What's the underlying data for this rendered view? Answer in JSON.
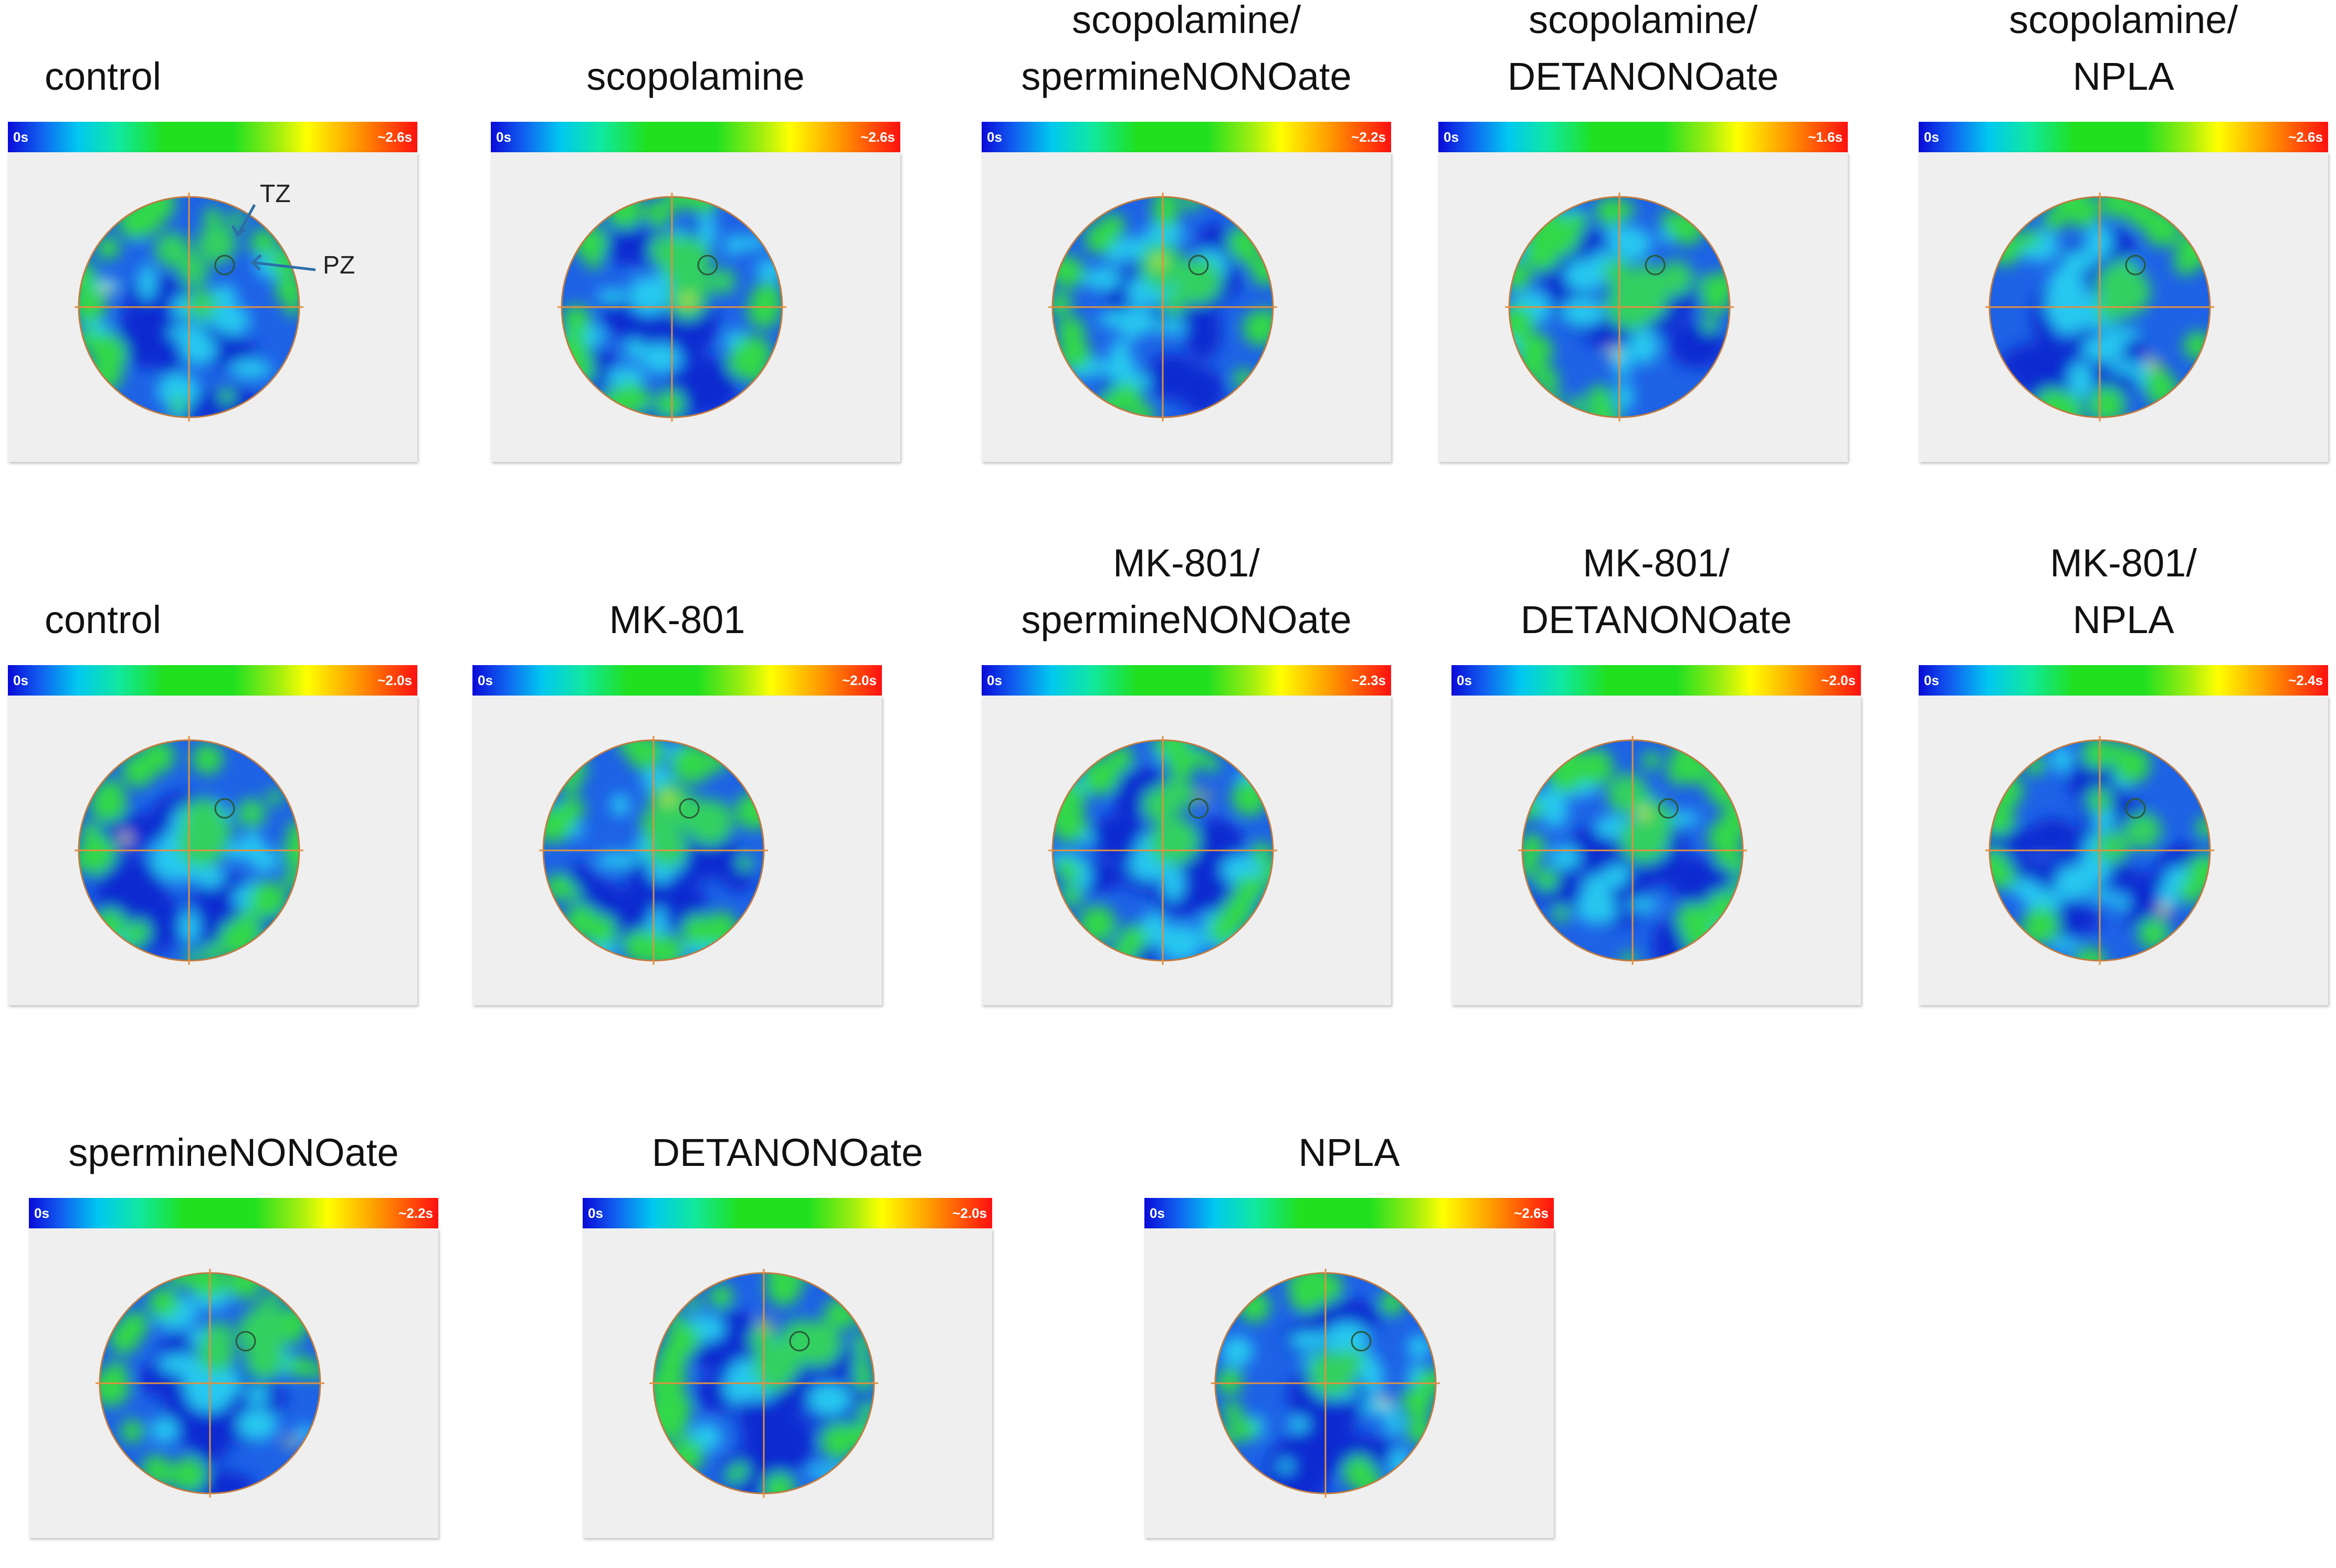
{
  "scale_min_label": "0s",
  "rows": [
    {
      "panels": [
        {
          "title": [
            "control"
          ],
          "scale_max": "~2.6s",
          "green": 0.35,
          "annotations": {
            "tz": "TZ",
            "pz": "PZ"
          }
        },
        {
          "title": [
            "scopolamine"
          ],
          "scale_max": "~2.6s",
          "green": 0.45
        },
        {
          "title": [
            "scopolamine/",
            "spermineNONOate"
          ],
          "scale_max": "~2.2s",
          "green": 0.3
        },
        {
          "title": [
            "scopolamine/",
            "DETANONOate"
          ],
          "scale_max": "~1.6s",
          "green": 0.55
        },
        {
          "title": [
            "scopolamine/",
            "NPLA"
          ],
          "scale_max": "~2.6s",
          "green": 0.3
        }
      ]
    },
    {
      "panels": [
        {
          "title": [
            "control"
          ],
          "scale_max": "~2.0s",
          "green": 0.5
        },
        {
          "title": [
            "MK-801"
          ],
          "scale_max": "~2.0s",
          "green": 0.55
        },
        {
          "title": [
            "MK-801/",
            "spermineNONOate"
          ],
          "scale_max": "~2.3s",
          "green": 0.5
        },
        {
          "title": [
            "MK-801/",
            "DETANONOate"
          ],
          "scale_max": "~2.0s",
          "green": 0.6
        },
        {
          "title": [
            "MK-801/",
            "NPLA"
          ],
          "scale_max": "~2.4s",
          "green": 0.3
        }
      ]
    },
    {
      "panels": [
        {
          "title": [
            "spermineNONOate"
          ],
          "scale_max": "~2.2s",
          "green": 0.35
        },
        {
          "title": [
            "DETANONOate"
          ],
          "scale_max": "~2.0s",
          "green": 0.5
        },
        {
          "title": [
            "NPLA"
          ],
          "scale_max": "~2.6s",
          "green": 0.2
        }
      ]
    }
  ]
}
